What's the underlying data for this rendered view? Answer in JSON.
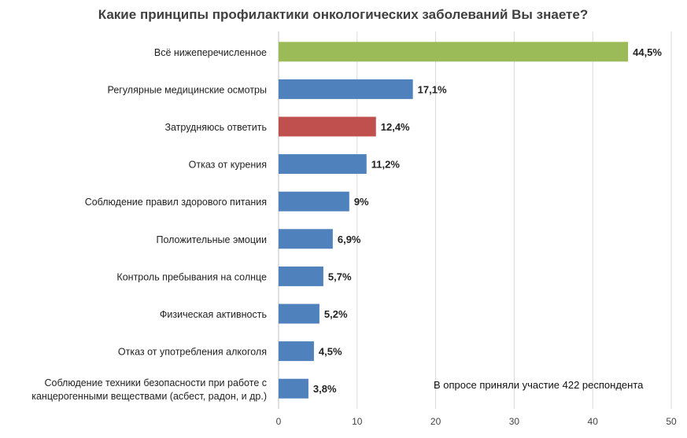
{
  "chart_data": {
    "type": "bar",
    "orientation": "horizontal",
    "title": "Какие принципы профилактики онкологических заболеваний Вы знаете?",
    "categories": [
      "Всё нижеперечисленное",
      "Регулярные медицинские осмотры",
      "Затрудняюсь ответить",
      "Отказ от курения",
      "Соблюдение правил здорового питания",
      "Положительные эмоции",
      "Контроль пребывания на солнце",
      "Физическая активность",
      "Отказ от употребления алкоголя",
      "Соблюдение техники безопасности при работе с канцерогенными веществами (асбест, радон, и др.)"
    ],
    "values": [
      44.5,
      17.1,
      12.4,
      11.2,
      9,
      6.9,
      5.7,
      5.2,
      4.5,
      3.8
    ],
    "value_labels": [
      "44,5%",
      "17,1%",
      "12,4%",
      "11,2%",
      "9%",
      "6,9%",
      "5,7%",
      "5,2%",
      "4,5%",
      "3,8%"
    ],
    "colors": [
      "#9bbb59",
      "#4f81bd",
      "#c0504d",
      "#4f81bd",
      "#4f81bd",
      "#4f81bd",
      "#4f81bd",
      "#4f81bd",
      "#4f81bd",
      "#4f81bd"
    ],
    "xlim": [
      0,
      50
    ],
    "xticks": [
      0,
      10,
      20,
      30,
      40,
      50
    ],
    "xlabel": "",
    "ylabel": "",
    "grid": true,
    "legend": "none",
    "annotation": "В опросе приняли участие 422 респондента"
  }
}
